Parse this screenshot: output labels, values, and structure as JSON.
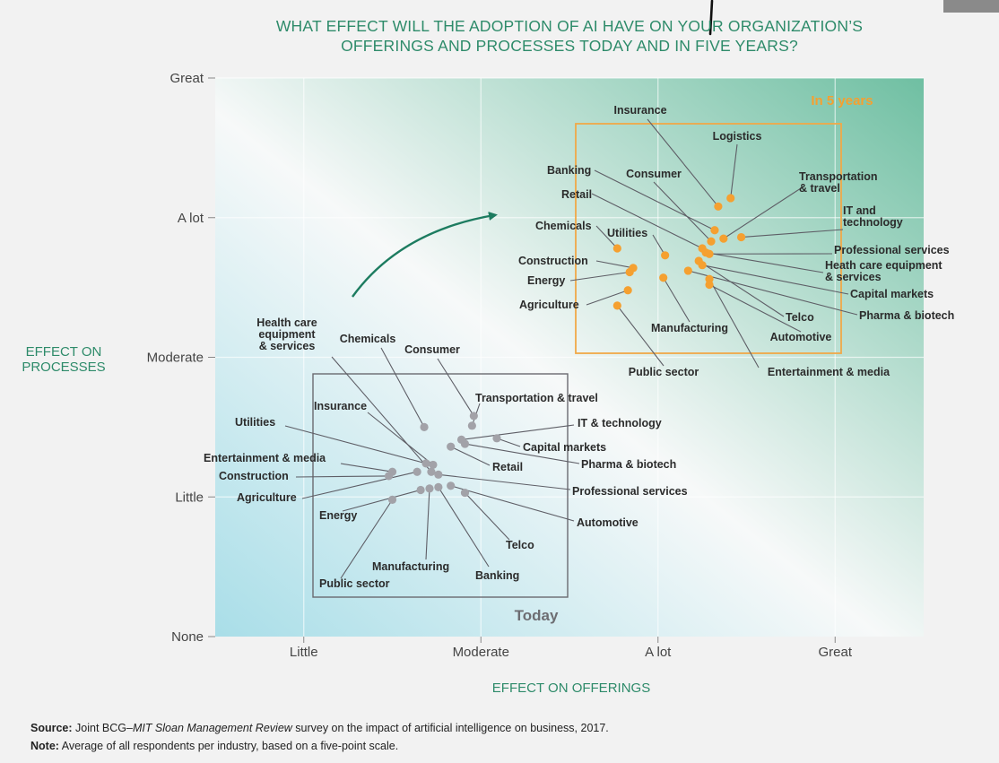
{
  "title_line1": "WHAT EFFECT WILL THE ADOPTION OF AI HAVE ON YOUR ORGANIZATION’S",
  "title_line2": "OFFERINGS AND PROCESSES TODAY AND IN FIVE YEARS?",
  "colors": {
    "accent": "#2e8b6a",
    "today": "#a2a2a8",
    "future": "#f5a030",
    "future_box": "#f0a848",
    "today_box": "#6a6a70"
  },
  "footer": {
    "source_label": "Source:",
    "source_pre": " Joint BCG–",
    "source_italic": "MIT Sloan Management Review",
    "source_post": " survey on the impact of artificial intelligence on business, 2017.",
    "note_label": "Note:",
    "note_text": " Average of all respondents per industry, based on a five-point scale."
  },
  "chart_data": {
    "type": "scatter",
    "title": "WHAT EFFECT WILL THE ADOPTION OF AI HAVE ON YOUR ORGANIZATION’S OFFERINGS AND PROCESSES TODAY AND IN FIVE YEARS?",
    "xlabel": "EFFECT ON OFFERINGS",
    "ylabel_line1": "EFFECT ON",
    "ylabel_line2": "PROCESSES",
    "x_ticks": [
      "Little",
      "Moderate",
      "A lot",
      "Great"
    ],
    "y_ticks": [
      "None",
      "Little",
      "Moderate",
      "A lot",
      "Great"
    ],
    "xlim": [
      0.5,
      4.5
    ],
    "ylim": [
      0,
      4
    ],
    "today_label": "Today",
    "future_label": "In 5 years",
    "series": [
      {
        "name": "Today",
        "points": [
          {
            "label": "Health care equipment & services",
            "x": 1.72,
            "y": 1.18
          },
          {
            "label": "Chemicals",
            "x": 1.68,
            "y": 1.5
          },
          {
            "label": "Consumer",
            "x": 1.96,
            "y": 1.58
          },
          {
            "label": "Transportation & travel",
            "x": 1.95,
            "y": 1.51
          },
          {
            "label": "Insurance",
            "x": 1.73,
            "y": 1.23
          },
          {
            "label": "IT & technology",
            "x": 1.89,
            "y": 1.41
          },
          {
            "label": "Capital markets",
            "x": 2.09,
            "y": 1.42
          },
          {
            "label": "Utilities",
            "x": 1.69,
            "y": 1.24
          },
          {
            "label": "Retail",
            "x": 1.83,
            "y": 1.36
          },
          {
            "label": "Pharma & biotech",
            "x": 1.91,
            "y": 1.38
          },
          {
            "label": "Entertainment & media",
            "x": 1.5,
            "y": 1.18
          },
          {
            "label": "Professional services",
            "x": 1.76,
            "y": 1.16
          },
          {
            "label": "Construction",
            "x": 1.48,
            "y": 1.15
          },
          {
            "label": "Agriculture",
            "x": 1.64,
            "y": 1.18
          },
          {
            "label": "Automotive",
            "x": 1.83,
            "y": 1.08
          },
          {
            "label": "Energy",
            "x": 1.66,
            "y": 1.05
          },
          {
            "label": "Telco",
            "x": 1.91,
            "y": 1.03
          },
          {
            "label": "Manufacturing",
            "x": 1.71,
            "y": 1.06
          },
          {
            "label": "Banking",
            "x": 1.76,
            "y": 1.07
          },
          {
            "label": "Public sector",
            "x": 1.5,
            "y": 0.98
          }
        ]
      },
      {
        "name": "In 5 years",
        "points": [
          {
            "label": "Insurance",
            "x": 3.34,
            "y": 3.08
          },
          {
            "label": "Logistics",
            "x": 3.41,
            "y": 3.14
          },
          {
            "label": "Banking",
            "x": 3.32,
            "y": 2.91
          },
          {
            "label": "Consumer",
            "x": 3.3,
            "y": 2.83
          },
          {
            "label": "Transportation & travel",
            "x": 3.37,
            "y": 2.85
          },
          {
            "label": "Retail",
            "x": 3.25,
            "y": 2.78
          },
          {
            "label": "IT and technology",
            "x": 3.47,
            "y": 2.86
          },
          {
            "label": "Chemicals",
            "x": 2.77,
            "y": 2.78
          },
          {
            "label": "Utilities",
            "x": 3.04,
            "y": 2.73
          },
          {
            "label": "Professional services",
            "x": 3.29,
            "y": 2.74
          },
          {
            "label": "Construction",
            "x": 2.86,
            "y": 2.64
          },
          {
            "label": "Heath care equipment & services",
            "x": 3.27,
            "y": 2.75
          },
          {
            "label": "Energy",
            "x": 2.84,
            "y": 2.61
          },
          {
            "label": "Capital markets",
            "x": 3.25,
            "y": 2.66
          },
          {
            "label": "Agriculture",
            "x": 2.83,
            "y": 2.48
          },
          {
            "label": "Telco",
            "x": 3.23,
            "y": 2.69
          },
          {
            "label": "Pharma & biotech",
            "x": 3.17,
            "y": 2.62
          },
          {
            "label": "Manufacturing",
            "x": 3.03,
            "y": 2.57
          },
          {
            "label": "Automotive",
            "x": 3.29,
            "y": 2.52
          },
          {
            "label": "Entertainment & media",
            "x": 3.29,
            "y": 2.56
          },
          {
            "label": "Public sector",
            "x": 2.77,
            "y": 2.37
          }
        ]
      }
    ]
  }
}
